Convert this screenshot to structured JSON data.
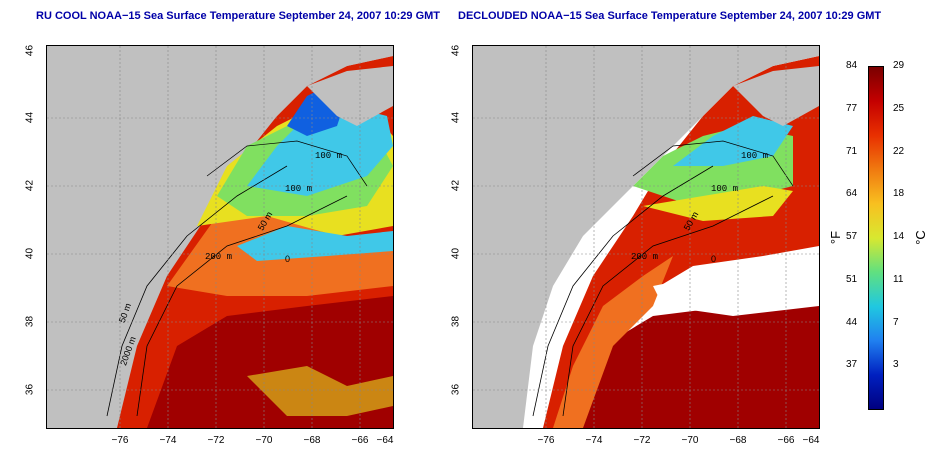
{
  "left_panel": {
    "title": "RU COOL NOAA−15 Sea Surface Temperature September 24, 2007 10:29 GMT"
  },
  "right_panel": {
    "title": "DECLOUDED NOAA−15 Sea Surface Temperature September 24, 2007 10:29 GMT"
  },
  "axes": {
    "lat_ticks": [
      "46",
      "44",
      "42",
      "40",
      "38",
      "36"
    ],
    "lon_ticks": [
      "−76",
      "−74",
      "−72",
      "−70",
      "−68",
      "−66",
      "−64"
    ]
  },
  "contour_labels": {
    "m100a": "100 m",
    "m100b": "100 m",
    "m50": "50 m",
    "m200": "200 m",
    "m0": "0",
    "m50b": "50 m",
    "m2000": "2000 m"
  },
  "colorbar": {
    "fahrenheit": [
      "84",
      "77",
      "71",
      "64",
      "57",
      "51",
      "44",
      "37"
    ],
    "celsius": [
      "29",
      "25",
      "22",
      "18",
      "14",
      "11",
      "7",
      "3"
    ],
    "unit_f": "°F",
    "unit_c": "°C",
    "colors": [
      "#7a0000",
      "#c40000",
      "#e83000",
      "#f07a10",
      "#f8c020",
      "#d8e830",
      "#60e080",
      "#20c8e0",
      "#2080f0",
      "#0020c0",
      "#000080"
    ]
  },
  "colors": {
    "land": "#c0c0c0",
    "warm_deep": "#a00000",
    "warm": "#d82000",
    "orange": "#f07020",
    "yellow": "#e8e020",
    "green": "#80e060",
    "cyan": "#40c8e8",
    "blue": "#1060e0",
    "cloud_free": "#ffffff",
    "title_blue": "#0000a8"
  }
}
